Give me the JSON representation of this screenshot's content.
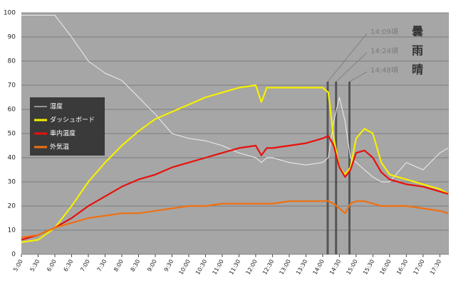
{
  "chart_data": {
    "type": "line",
    "x": [
      5,
      5.5,
      6,
      6.5,
      7,
      7.5,
      8,
      8.5,
      9,
      9.5,
      10,
      10.5,
      11,
      11.5,
      12,
      12.17,
      12.33,
      12.5,
      13,
      13.5,
      14,
      14.17,
      14.33,
      14.5,
      14.67,
      14.83,
      15,
      15.25,
      15.5,
      15.75,
      16,
      16.5,
      17,
      17.5,
      17.75
    ],
    "series": [
      {
        "name": "湿度",
        "color": "#f0f0f0",
        "values": [
          99,
          99,
          99,
          90,
          80,
          75,
          72,
          65,
          58,
          50,
          48,
          47,
          45,
          42,
          40,
          38,
          40,
          40,
          38,
          37,
          38,
          40,
          55,
          65,
          55,
          40,
          38,
          35,
          32,
          30,
          30,
          38,
          35,
          42,
          44
        ]
      },
      {
        "name": "ダッシュボード",
        "color": "#f5f000",
        "values": [
          5,
          6,
          11,
          20,
          30,
          38,
          45,
          51,
          56,
          59,
          62,
          65,
          67,
          69,
          70,
          63,
          69,
          69,
          69,
          69,
          69,
          67,
          48,
          36,
          33,
          36,
          48,
          52,
          50,
          38,
          33,
          31,
          29,
          27,
          25
        ]
      },
      {
        "name": "車内温度",
        "color": "#e8100c",
        "values": [
          6,
          8,
          11,
          15,
          20,
          24,
          28,
          31,
          33,
          36,
          38,
          40,
          42,
          44,
          45,
          41,
          44,
          44,
          45,
          46,
          48,
          49,
          45,
          36,
          32,
          35,
          42,
          43,
          40,
          34,
          31,
          29,
          28,
          26,
          25
        ]
      },
      {
        "name": "外気温",
        "color": "#f07010",
        "values": [
          7,
          8,
          11,
          13,
          15,
          16,
          17,
          17,
          18,
          19,
          20,
          20,
          21,
          21,
          21,
          21,
          21,
          21,
          22,
          22,
          22,
          22,
          21,
          19,
          17,
          21,
          22,
          22,
          21,
          20,
          20,
          20,
          19,
          18,
          17
        ]
      }
    ],
    "xlim": [
      5,
      17.77
    ],
    "xticks": [
      {
        "value": 5,
        "label": "5:00"
      },
      {
        "value": 5.5,
        "label": "5:30"
      },
      {
        "value": 6,
        "label": "6:00"
      },
      {
        "value": 6.5,
        "label": "6:30"
      },
      {
        "value": 7,
        "label": "7:00"
      },
      {
        "value": 7.5,
        "label": "7:30"
      },
      {
        "value": 8,
        "label": "8:00"
      },
      {
        "value": 8.5,
        "label": "8:30"
      },
      {
        "value": 9,
        "label": "9:00"
      },
      {
        "value": 9.5,
        "label": "9:30"
      },
      {
        "value": 10,
        "label": "10:00"
      },
      {
        "value": 10.5,
        "label": "10:30"
      },
      {
        "value": 11,
        "label": "11:00"
      },
      {
        "value": 11.5,
        "label": "11:30"
      },
      {
        "value": 12,
        "label": "12:00"
      },
      {
        "value": 12.5,
        "label": "12:30"
      },
      {
        "value": 13,
        "label": "13:00"
      },
      {
        "value": 13.5,
        "label": "13:30"
      },
      {
        "value": 14,
        "label": "14:00"
      },
      {
        "value": 14.5,
        "label": "14:30"
      },
      {
        "value": 15,
        "label": "15:00"
      },
      {
        "value": 15.5,
        "label": "15:30"
      },
      {
        "value": 16,
        "label": "16:00"
      },
      {
        "value": 16.5,
        "label": "16:30"
      },
      {
        "value": 17,
        "label": "17:00"
      },
      {
        "value": 17.5,
        "label": "17:30"
      }
    ],
    "ylim": [
      0,
      100
    ],
    "yticks": [
      0,
      10,
      20,
      30,
      40,
      50,
      60,
      70,
      80,
      90,
      100
    ],
    "grid": true,
    "annotations": [
      {
        "x": 14.15,
        "time": "14:09頃",
        "weather": "曇"
      },
      {
        "x": 14.4,
        "time": "14:24頃",
        "weather": "雨"
      },
      {
        "x": 14.8,
        "time": "14:48頃",
        "weather": "晴"
      }
    ]
  }
}
